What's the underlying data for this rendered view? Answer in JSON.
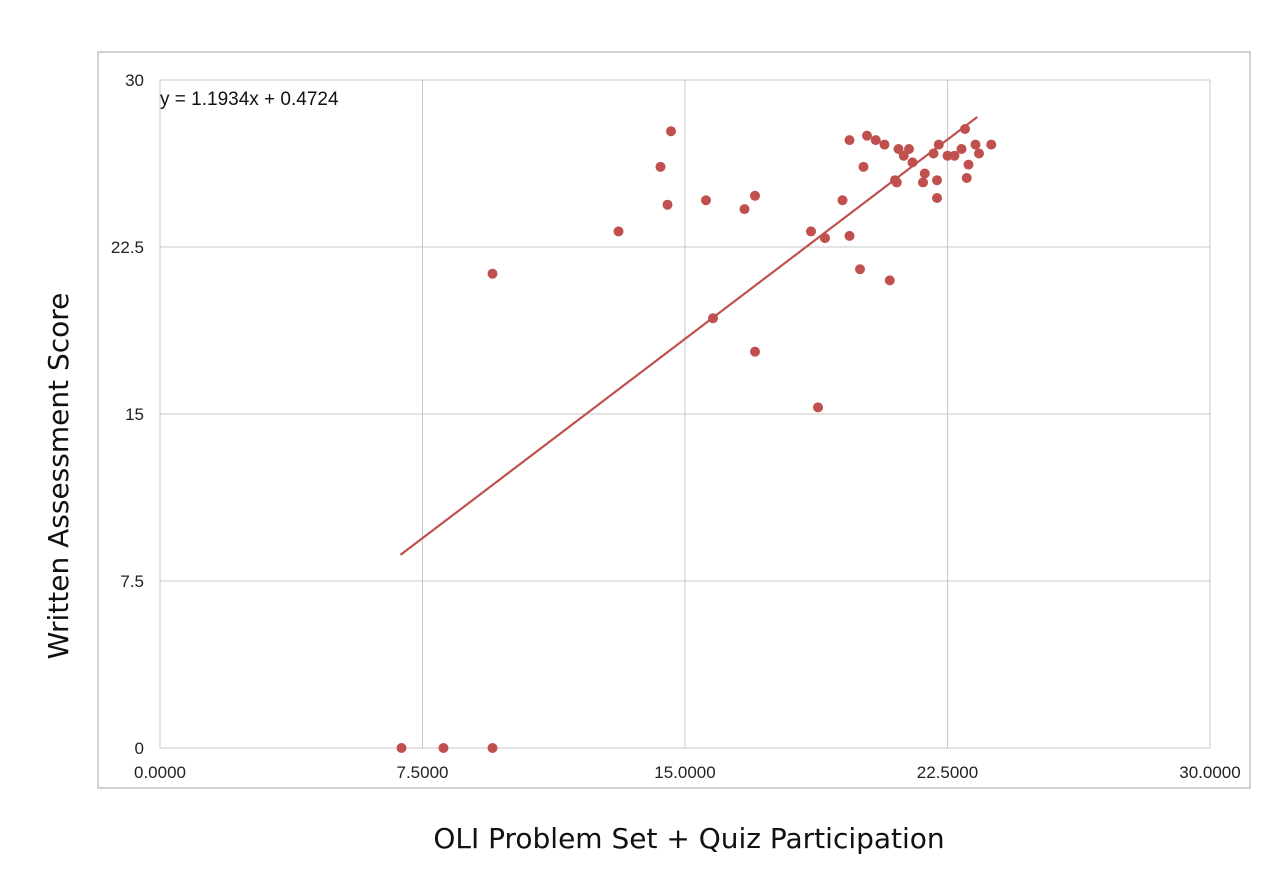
{
  "chart_data": {
    "type": "scatter",
    "title": "",
    "xlabel": "OLI Problem Set + Quiz Participation",
    "ylabel": "Written Assessment Score",
    "xlim": [
      0,
      30
    ],
    "ylim": [
      0,
      30
    ],
    "x_ticks": [
      "0.0000",
      "7.5000",
      "15.0000",
      "22.5000",
      "30.0000"
    ],
    "y_ticks": [
      "0",
      "7.5",
      "15",
      "22.5",
      "30"
    ],
    "grid": true,
    "legend": "none",
    "colors": {
      "points": "#c0504d",
      "trendline": "#c0504d",
      "grid": "#c8c8c8",
      "frame": "#b5b5b5"
    },
    "trendline": {
      "equation": "y = 1.1934x + 0.4724",
      "slope": 1.1934,
      "intercept": 0.4724,
      "x_start": 6.87,
      "x_end": 23.35
    },
    "series": [
      {
        "points": [
          [
            6.9,
            0
          ],
          [
            8.1,
            0
          ],
          [
            9.5,
            0
          ],
          [
            9.5,
            21.3
          ],
          [
            13.1,
            23.2
          ],
          [
            14.3,
            26.1
          ],
          [
            14.5,
            24.4
          ],
          [
            14.6,
            27.7
          ],
          [
            15.6,
            24.6
          ],
          [
            15.8,
            19.3
          ],
          [
            16.7,
            24.2
          ],
          [
            17.0,
            24.8
          ],
          [
            17.0,
            17.8
          ],
          [
            18.6,
            23.2
          ],
          [
            18.8,
            15.3
          ],
          [
            19.0,
            22.9
          ],
          [
            19.5,
            24.6
          ],
          [
            19.7,
            23.0
          ],
          [
            19.7,
            27.3
          ],
          [
            20.0,
            21.5
          ],
          [
            20.1,
            26.1
          ],
          [
            20.2,
            27.5
          ],
          [
            20.45,
            27.3
          ],
          [
            20.7,
            27.1
          ],
          [
            20.85,
            21.0
          ],
          [
            21.0,
            25.5
          ],
          [
            21.05,
            25.4
          ],
          [
            21.1,
            26.9
          ],
          [
            21.25,
            26.6
          ],
          [
            21.4,
            26.9
          ],
          [
            21.5,
            26.3
          ],
          [
            21.8,
            25.4
          ],
          [
            21.85,
            25.8
          ],
          [
            22.1,
            26.7
          ],
          [
            22.2,
            24.7
          ],
          [
            22.2,
            25.5
          ],
          [
            22.25,
            27.1
          ],
          [
            22.5,
            26.6
          ],
          [
            22.7,
            26.6
          ],
          [
            22.9,
            26.9
          ],
          [
            23.0,
            27.8
          ],
          [
            23.05,
            25.6
          ],
          [
            23.1,
            26.2
          ],
          [
            23.3,
            27.1
          ],
          [
            23.4,
            26.7
          ],
          [
            23.75,
            27.1
          ]
        ]
      }
    ]
  }
}
